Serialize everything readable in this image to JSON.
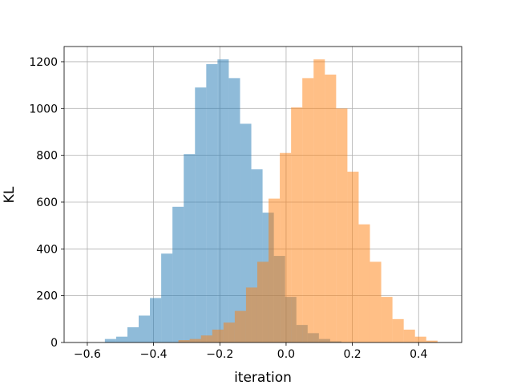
{
  "chart_data": {
    "type": "histogram",
    "title": "",
    "xlabel": "iteration",
    "ylabel": "KL",
    "xlim": [
      -0.67,
      0.53
    ],
    "ylim": [
      0,
      1265
    ],
    "x_ticks": [
      -0.6,
      -0.4,
      -0.2,
      0.0,
      0.2,
      0.4
    ],
    "x_tick_labels": [
      "−0.6",
      "−0.4",
      "−0.2",
      "0.0",
      "0.2",
      "0.4"
    ],
    "y_ticks": [
      0,
      200,
      400,
      600,
      800,
      1000,
      1200
    ],
    "y_tick_labels": [
      "0",
      "200",
      "400",
      "600",
      "800",
      "1000",
      "1200"
    ],
    "grid": true,
    "legend": false,
    "alpha": 0.5,
    "series": [
      {
        "color": "#1f77b4",
        "bin_edges": [
          -0.547,
          -0.513,
          -0.479,
          -0.445,
          -0.411,
          -0.377,
          -0.343,
          -0.309,
          -0.275,
          -0.241,
          -0.207,
          -0.173,
          -0.139,
          -0.105,
          -0.071,
          -0.037,
          -0.003,
          0.031,
          0.065,
          0.099,
          0.133,
          0.167
        ],
        "counts": [
          15,
          25,
          65,
          115,
          190,
          380,
          580,
          805,
          1090,
          1190,
          1210,
          1130,
          935,
          740,
          555,
          370,
          195,
          75,
          40,
          15,
          5
        ]
      },
      {
        "color": "#ff7f0e",
        "bin_edges": [
          -0.325,
          -0.291,
          -0.257,
          -0.223,
          -0.189,
          -0.155,
          -0.121,
          -0.087,
          -0.053,
          -0.019,
          0.015,
          0.049,
          0.083,
          0.117,
          0.151,
          0.185,
          0.219,
          0.253,
          0.287,
          0.321,
          0.355,
          0.389,
          0.423,
          0.457
        ],
        "counts": [
          10,
          15,
          30,
          55,
          85,
          135,
          235,
          345,
          615,
          810,
          1005,
          1130,
          1210,
          1145,
          1000,
          730,
          505,
          345,
          195,
          100,
          55,
          25,
          8
        ]
      }
    ]
  }
}
